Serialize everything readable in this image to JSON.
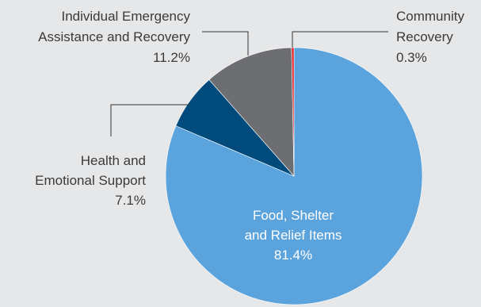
{
  "chart_data": {
    "type": "pie",
    "title": "",
    "slices": [
      {
        "label_lines": [
          "Food, Shelter",
          "and Relief Items"
        ],
        "value_text": "81.4%",
        "value": 81.4,
        "color": "#5ba3dc",
        "label_placement": "inside"
      },
      {
        "label_lines": [
          "Health and",
          "Emotional Support"
        ],
        "value_text": "7.1%",
        "value": 7.1,
        "color": "#004b7c",
        "label_placement": "outside-left"
      },
      {
        "label_lines": [
          "Individual Emergency",
          "Assistance and Recovery"
        ],
        "value_text": "11.2%",
        "value": 11.2,
        "color": "#6d6e71",
        "label_placement": "outside-top-left"
      },
      {
        "label_lines": [
          "Community",
          "Recovery"
        ],
        "value_text": "0.3%",
        "value": 0.3,
        "color": "#e31b23",
        "label_placement": "outside-top-right"
      }
    ]
  }
}
